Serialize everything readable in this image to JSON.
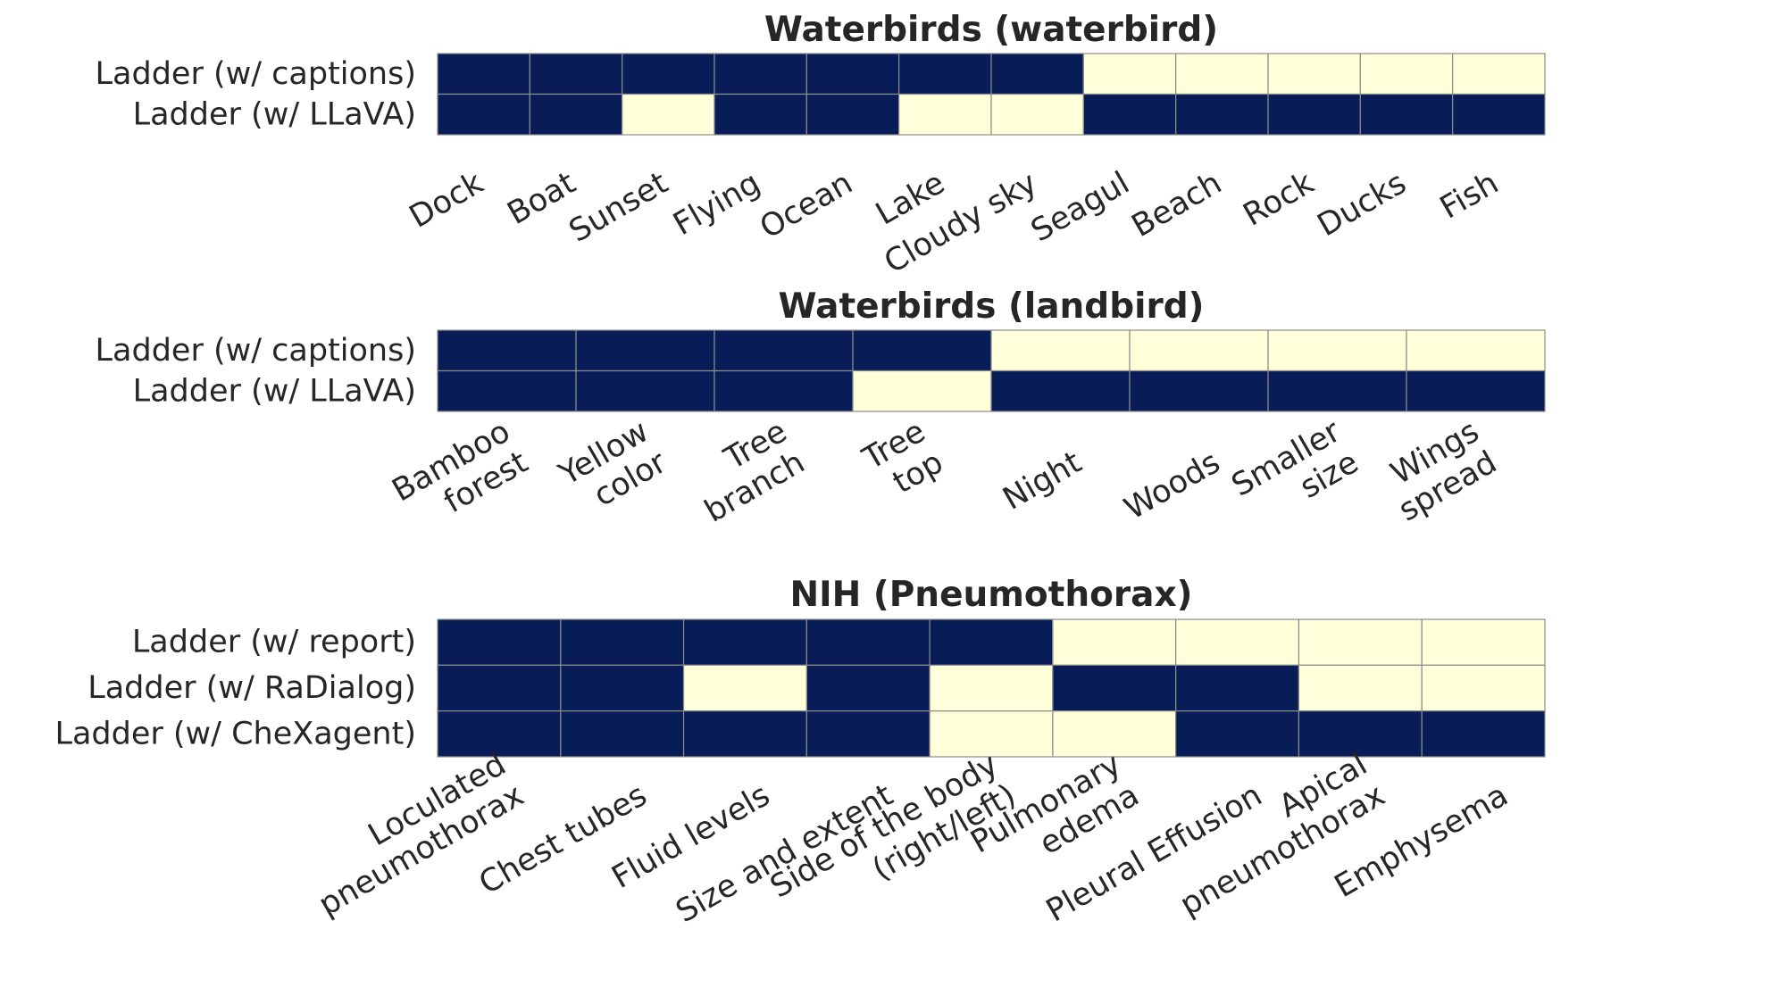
{
  "chart_data": [
    {
      "type": "heatmap",
      "title": "Waterbirds (waterbird)",
      "rows": [
        "Ladder (w/ captions)",
        "Ladder (w/ LLaVA)"
      ],
      "columns": [
        "Dock",
        "Boat",
        "Sunset",
        "Flying",
        "Ocean",
        "Lake",
        "Cloudy sky",
        "Seagul",
        "Beach",
        "Rock",
        "Ducks",
        "Fish"
      ],
      "values": [
        [
          1,
          1,
          1,
          1,
          1,
          1,
          1,
          0,
          0,
          0,
          0,
          0
        ],
        [
          1,
          1,
          0,
          1,
          1,
          0,
          0,
          1,
          1,
          1,
          1,
          1
        ]
      ],
      "colors": {
        "1": "#081d58",
        "0": "#ffffd9"
      },
      "legend": "none",
      "grid": true
    },
    {
      "type": "heatmap",
      "title": "Waterbirds (landbird)",
      "rows": [
        "Ladder (w/ captions)",
        "Ladder (w/ LLaVA)"
      ],
      "columns": [
        "Bamboo\nforest",
        "Yellow\ncolor",
        "Tree\nbranch",
        "Tree\ntop",
        "Night",
        "Woods",
        "Smaller\nsize",
        "Wings\nspread"
      ],
      "values": [
        [
          1,
          1,
          1,
          1,
          0,
          0,
          0,
          0
        ],
        [
          1,
          1,
          1,
          0,
          1,
          1,
          1,
          1
        ]
      ],
      "colors": {
        "1": "#081d58",
        "0": "#ffffd9"
      },
      "legend": "none",
      "grid": true
    },
    {
      "type": "heatmap",
      "title": "NIH (Pneumothorax)",
      "rows": [
        "Ladder (w/ report)",
        "Ladder (w/ RaDialog)",
        "Ladder (w/ CheXagent)"
      ],
      "columns": [
        "Loculated\npneumothorax",
        "Chest tubes",
        "Fluid levels",
        "Size and extent",
        "Side of the body\n(right/left)",
        "Pulmonary\nedema",
        "Pleural Effusion",
        "Apical\npneumothorax",
        "Emphysema"
      ],
      "values": [
        [
          1,
          1,
          1,
          1,
          1,
          0,
          0,
          0,
          0
        ],
        [
          1,
          1,
          0,
          1,
          0,
          1,
          1,
          0,
          0
        ],
        [
          1,
          1,
          1,
          1,
          0,
          0,
          1,
          1,
          1
        ]
      ],
      "colors": {
        "1": "#081d58",
        "0": "#ffffd9"
      },
      "legend": "none",
      "grid": true
    }
  ]
}
